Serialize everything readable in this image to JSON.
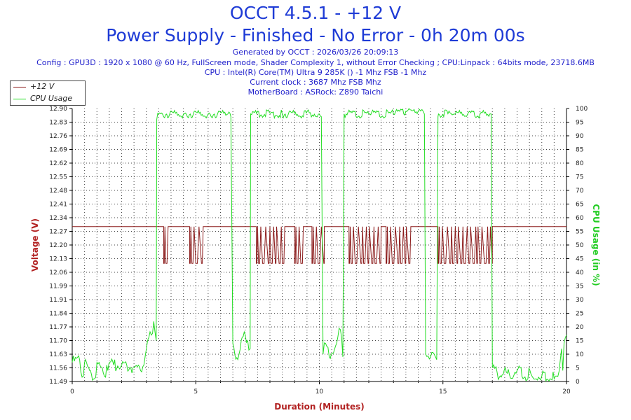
{
  "header": {
    "title_line1": "OCCT 4.5.1 - +12 V",
    "title_line2": "Power Supply - Finished - No Error - 0h 20m 00s",
    "generated": "Generated by OCCT : 2026/03/26 20:09:13",
    "config": "Config : GPU3D : 1920 x 1080 @ 60 Hz, FullScreen mode, Shader Complexity 1, without Error Checking ; CPU:Linpack : 64bits mode, 23718.6MB",
    "cpu": "CPU : Intel(R) Core(TM) Ultra 9 285K () -1 Mhz FSB -1 Mhz",
    "clock": "Current clock : 3687 Mhz FSB  Mhz",
    "motherboard": "MotherBoard : ASRock: Z890 Taichi"
  },
  "colors": {
    "voltage": "#8b1a1a",
    "cpu": "#22dd22",
    "axis_label": "#b22222",
    "cpu_label": "#22cc22",
    "title": "#1e3bd6",
    "info": "#2222cc"
  },
  "chart_data": {
    "type": "line",
    "xlabel": "Duration (Minutes)",
    "ylabel": "Voltage (V)",
    "y2label": "CPU Usage (in %)",
    "xlim": [
      0,
      20
    ],
    "ylim": [
      11.49,
      12.9
    ],
    "y2lim": [
      0,
      100
    ],
    "x_ticks": [
      "0",
      "5",
      "10",
      "15",
      "20"
    ],
    "y_ticks": [
      "11.49",
      "11.56",
      "11.63",
      "11.70",
      "11.77",
      "11.84",
      "11.91",
      "11.99",
      "12.06",
      "12.13",
      "12.20",
      "12.27",
      "12.34",
      "12.41",
      "12.48",
      "12.55",
      "12.62",
      "12.69",
      "12.76",
      "12.83",
      "12.90"
    ],
    "y2_ticks": [
      "0",
      "5",
      "10",
      "15",
      "20",
      "25",
      "30",
      "35",
      "40",
      "45",
      "50",
      "55",
      "60",
      "65",
      "70",
      "75",
      "80",
      "85",
      "90",
      "95",
      "100"
    ],
    "grid": true,
    "legend_position": "top-left",
    "series": [
      {
        "name": "+12 V",
        "axis": "left",
        "baseline": 12.29,
        "dips": [
          [
            3.7,
            3.9
          ],
          [
            4.75,
            5.3
          ],
          [
            7.45,
            8.6
          ],
          [
            9.0,
            9.35
          ],
          [
            9.7,
            10.2
          ],
          [
            11.2,
            12.5
          ],
          [
            12.7,
            13.7
          ],
          [
            14.8,
            17.0
          ]
        ],
        "dip_low": 12.1
      },
      {
        "name": "CPU Usage",
        "axis": "right",
        "x": [
          0,
          0.3,
          0.45,
          0.5,
          0.9,
          1.0,
          1.3,
          1.4,
          2.0,
          2.5,
          2.9,
          3.0,
          3.05,
          3.2,
          3.3,
          3.4,
          3.42,
          3.5,
          4.5,
          5.5,
          6.3,
          6.42,
          6.5,
          6.7,
          6.8,
          7.0,
          7.1,
          7.2,
          7.22,
          8.5,
          10.0,
          10.08,
          10.15,
          10.25,
          10.4,
          10.7,
          10.85,
          10.95,
          11.0,
          12.0,
          13.0,
          13.5,
          14.0,
          14.2,
          14.25,
          14.3,
          14.5,
          14.7,
          14.75,
          14.8,
          14.82,
          15.5,
          16.0,
          16.5,
          16.9,
          16.95,
          17.0,
          17.2,
          17.6,
          18.0,
          18.6,
          19.0,
          19.5,
          19.6,
          19.75,
          19.8,
          19.85,
          19.9,
          19.95,
          20.0
        ],
        "y": [
          7,
          8,
          2,
          7,
          1,
          7,
          2,
          6,
          6,
          5,
          6,
          12,
          15,
          17,
          22,
          15,
          96,
          98,
          98,
          98,
          98,
          97,
          14,
          8,
          12,
          17,
          15,
          12,
          98,
          98,
          98,
          97,
          10,
          14,
          9,
          14,
          19,
          9,
          98,
          98,
          98,
          99,
          99,
          99,
          98,
          10,
          9,
          9,
          8,
          97,
          98,
          98,
          98,
          98,
          98,
          98,
          5,
          3,
          3,
          4,
          2,
          2,
          1,
          2,
          8,
          12,
          4,
          14,
          16,
          17
        ]
      }
    ]
  }
}
